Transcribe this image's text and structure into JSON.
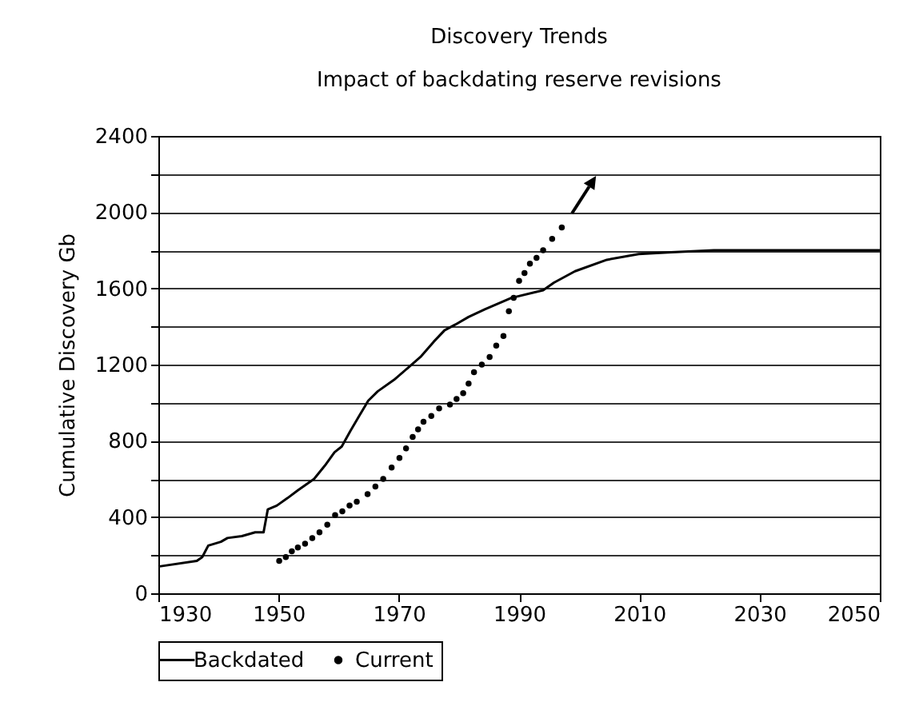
{
  "chart_data": {
    "type": "line",
    "title": "Discovery Trends",
    "subtitle": "Impact of backdating reserve revisions",
    "ylabel": "Cumulative Discovery Gb",
    "xlim": [
      1930,
      2050
    ],
    "xticks": [
      1930,
      1950,
      1970,
      1990,
      2010,
      2030,
      2050
    ],
    "ylim": [
      0,
      2400
    ],
    "yticks": [
      0,
      {
        "value": 200,
        "label": null
      },
      400,
      {
        "value": 600,
        "label": null
      },
      800,
      {
        "value": 1000,
        "label": null
      },
      1200,
      {
        "value": 1400,
        "label": null
      },
      1600,
      {
        "value": 1800,
        "label": null
      },
      2000,
      {
        "value": 2200,
        "label": null
      },
      2400
    ],
    "grid": "y",
    "legend": "bottom",
    "series": [
      {
        "name": "Backdated",
        "color": "#000000",
        "x": [
          1930,
          1936.4,
          1937.3,
          1938.3,
          1940.4,
          1941.5,
          1943.9,
          1946.1,
          1947.5,
          1948.2,
          1949.7,
          1951.5,
          1953.2,
          1955.9,
          1957.7,
          1959.3,
          1960.5,
          1961.9,
          1963.4,
          1964.9,
          1966.5,
          1969.2,
          1971.4,
          1973.6,
          1975.8,
          1977.6,
          1979.4,
          1981.6,
          1984.3,
          1988.7,
          1994,
          1995.8,
          1999.3,
          2004.6,
          2009.9,
          2015.3,
          2022.4,
          2031.3,
          2050
        ],
        "values": [
          140,
          170,
          190,
          250,
          270,
          290,
          300,
          320,
          320,
          440,
          460,
          500,
          540,
          600,
          670,
          740,
          770,
          850,
          930,
          1010,
          1060,
          1120,
          1180,
          1240,
          1320,
          1380,
          1410,
          1450,
          1490,
          1550,
          1590,
          1630,
          1690,
          1750,
          1780,
          1790,
          1800,
          1800,
          1800
        ]
      },
      {
        "name": "Current",
        "type": "scatter",
        "color": "#000000",
        "marker": "circle",
        "x": [
          1950.1,
          1951.2,
          1952.2,
          1953.2,
          1954.4,
          1955.6,
          1956.8,
          1958.1,
          1959.4,
          1960.6,
          1961.8,
          1963,
          1964.8,
          1966.1,
          1967.4,
          1968.8,
          1970.1,
          1971.2,
          1972.3,
          1973.2,
          1974.1,
          1975.4,
          1976.7,
          1978.5,
          1979.6,
          1980.7,
          1981.6,
          1982.5,
          1983.8,
          1985.1,
          1986.2,
          1987.4,
          1988.3,
          1989.1,
          1990,
          1990.9,
          1991.8,
          1992.9,
          1994,
          1995.5,
          1997.1
        ],
        "values": [
          170,
          190,
          220,
          240,
          260,
          290,
          320,
          360,
          410,
          430,
          460,
          480,
          520,
          560,
          600,
          660,
          710,
          760,
          820,
          860,
          900,
          930,
          970,
          990,
          1020,
          1050,
          1100,
          1160,
          1200,
          1240,
          1300,
          1350,
          1480,
          1550,
          1640,
          1680,
          1730,
          1760,
          1800,
          1860,
          1920
        ]
      }
    ]
  }
}
